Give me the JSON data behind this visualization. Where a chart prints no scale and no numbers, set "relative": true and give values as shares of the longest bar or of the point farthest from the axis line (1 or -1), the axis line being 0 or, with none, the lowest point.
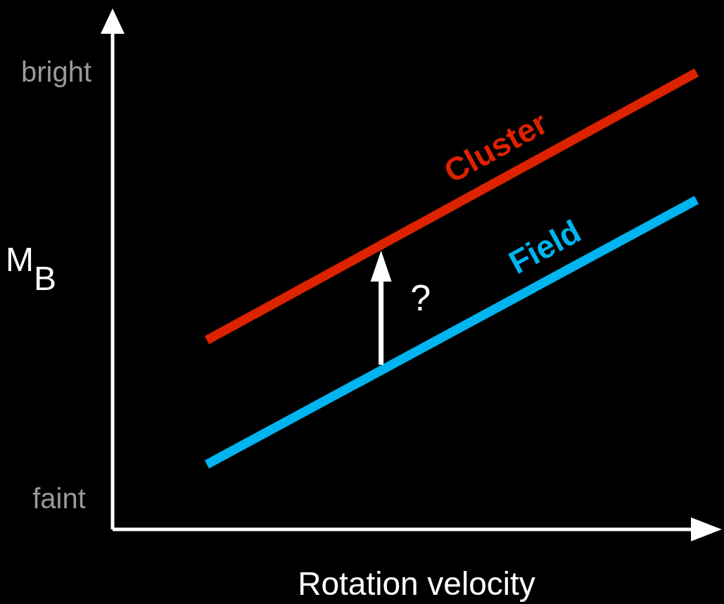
{
  "chart_data": {
    "type": "line",
    "relative": true,
    "xlabel": "Rotation velocity",
    "ylabel": "M$_{B}$",
    "annotations": [
      "bright",
      "faint",
      "?"
    ],
    "categories": [
      null,
      null
    ],
    "series": [
      {
        "name": "Cluster",
        "color": "#dd2200",
        "values": [
          0.414,
          1.0
        ]
      },
      {
        "name": "Field",
        "color": "#00b4f0",
        "values": [
          0.142,
          0.721
        ]
      }
    ]
  }
}
